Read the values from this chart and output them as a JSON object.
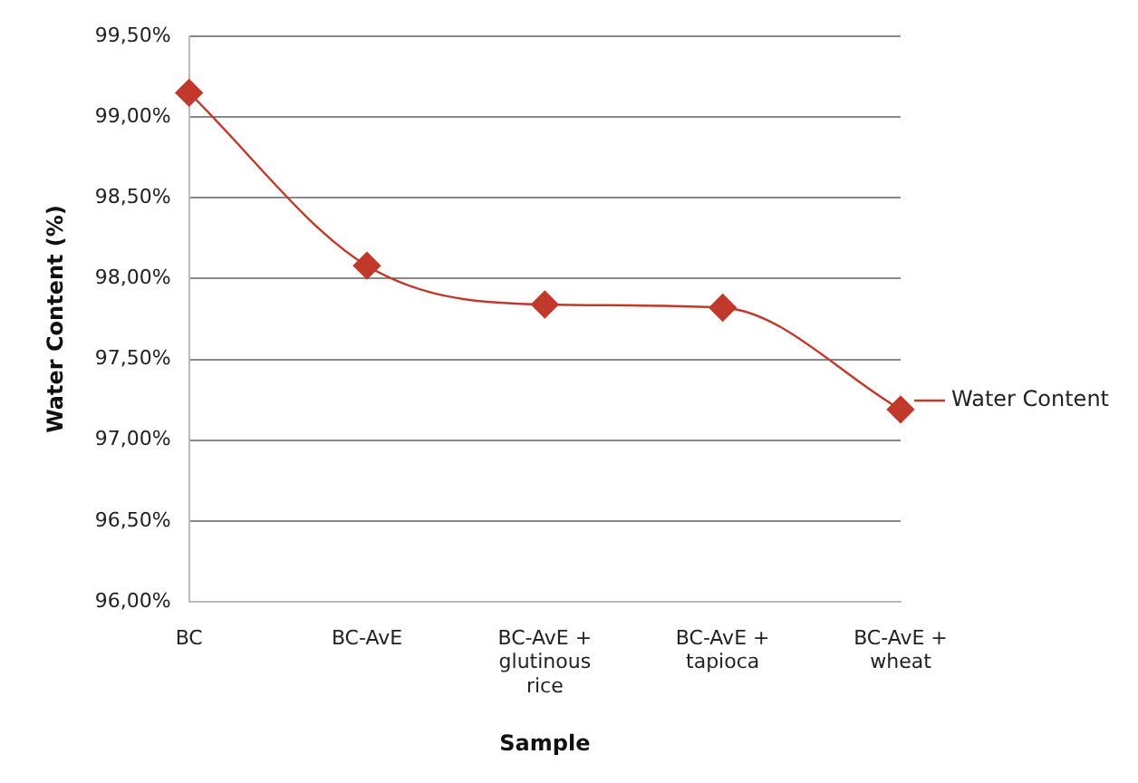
{
  "chart_data": {
    "type": "line",
    "xlabel": "Sample",
    "ylabel": "Water Content (%)",
    "categories": [
      "BC",
      "BC-AvE",
      "BC-AvE + glutinous rice",
      "BC-AvE + tapioca",
      "BC-AvE + wheat"
    ],
    "series": [
      {
        "name": "Water Content",
        "color": "#c0392b",
        "values": [
          99.15,
          98.08,
          97.84,
          97.82,
          97.19
        ]
      }
    ],
    "ylim": [
      96,
      99.5
    ],
    "yticks": [
      {
        "value": 96,
        "label": "96,00%"
      },
      {
        "value": 96.5,
        "label": "96,50%"
      },
      {
        "value": 97,
        "label": "97,00%"
      },
      {
        "value": 97.5,
        "label": "97,50%"
      },
      {
        "value": 98,
        "label": "98,00%"
      },
      {
        "value": 98.5,
        "label": "98,50%"
      },
      {
        "value": 99,
        "label": "99,00%"
      },
      {
        "value": 99.5,
        "label": "99,50%"
      }
    ],
    "grid": "y",
    "legend": "right",
    "marker": "diamond"
  }
}
